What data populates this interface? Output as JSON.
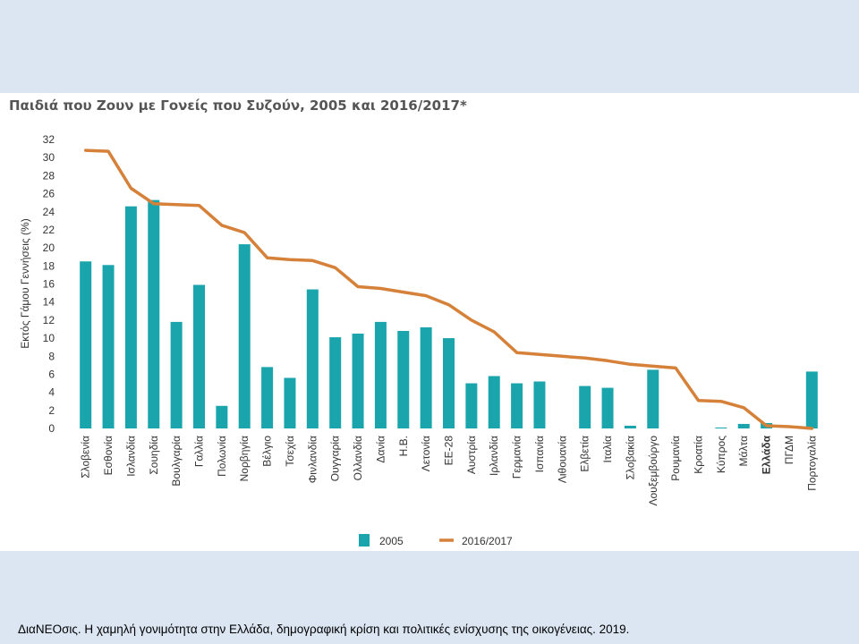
{
  "title": "Παιδιά που Ζουν με Γονείς που Συζούν, 2005 και 2016/2017*",
  "caption": "ΔιαΝΕΟσις. Η χαμηλή γονιμότητα στην Ελλάδα, δημογραφική κρίση και πολιτικές ενίσχυσης της οικογένειας. 2019.",
  "colors": {
    "bar": "#1aa5ad",
    "line": "#d6813a",
    "axis_text": "#333333",
    "background": "#dce6f2"
  },
  "chart_data": {
    "type": "bar",
    "ylabel": "Εκτός Γάμου Γεννήσεις (%)",
    "xlabel": "",
    "ylim": [
      0,
      32
    ],
    "yticks": [
      0,
      2,
      4,
      6,
      8,
      10,
      12,
      14,
      16,
      18,
      20,
      22,
      24,
      26,
      28,
      30,
      32
    ],
    "grid": false,
    "legend_position": "bottom",
    "highlighted_category": "Ελλάδα",
    "categories": [
      "Σλοβενία",
      "Εσθονία",
      "Ισλανδία",
      "Σουηδία",
      "Βουλγαρία",
      "Γαλλία",
      "Πολωνία",
      "Νορβηγία",
      "Βέλγιο",
      "Τσεχία",
      "Φινλανδία",
      "Ουγγαρία",
      "Ολλανδία",
      "Δανία",
      "Η.Β.",
      "Λετονία",
      "ΕΕ-28",
      "Αυστρία",
      "Ιρλανδία",
      "Γερμανία",
      "Ισπανία",
      "Λιθουανία",
      "Ελβετία",
      "Ιταλία",
      "Σλοβακία",
      "Λουξεμβούργο",
      "Ρουμανία",
      "Κροατία",
      "Κύπρος",
      "Μάλτα",
      "Ελλάδα",
      "ΠΓΔΜ",
      "Πορτογαλία"
    ],
    "series": [
      {
        "name": "2005",
        "type": "bar",
        "values": [
          18.5,
          18.1,
          24.6,
          25.3,
          11.8,
          15.9,
          2.5,
          20.4,
          6.8,
          5.6,
          15.4,
          10.1,
          10.5,
          11.8,
          10.8,
          11.2,
          10.0,
          5.0,
          5.8,
          5.0,
          5.2,
          null,
          4.7,
          4.5,
          0.3,
          6.5,
          null,
          null,
          0.1,
          0.5,
          0.6,
          null,
          6.3
        ]
      },
      {
        "name": "2016/2017",
        "type": "line",
        "values": [
          30.8,
          30.7,
          26.6,
          24.9,
          24.8,
          24.7,
          22.5,
          21.7,
          18.9,
          18.7,
          18.6,
          17.8,
          15.7,
          15.5,
          15.1,
          14.7,
          13.7,
          12.0,
          10.7,
          8.4,
          8.2,
          8.0,
          7.8,
          7.5,
          7.1,
          6.9,
          6.7,
          3.1,
          3.0,
          2.3,
          0.3,
          0.2,
          0.0
        ]
      }
    ]
  }
}
